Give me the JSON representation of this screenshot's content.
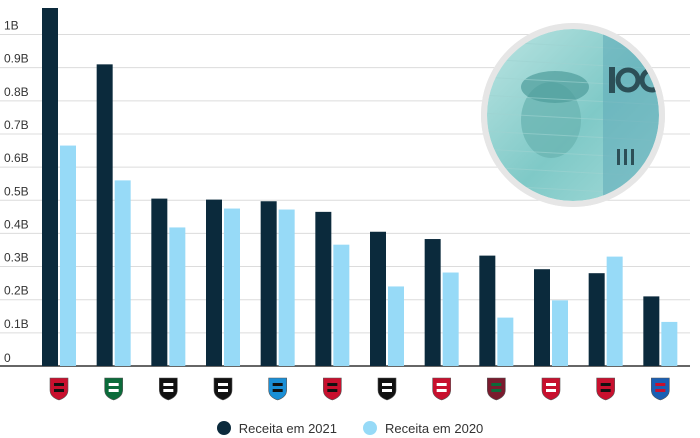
{
  "chart_data": {
    "type": "bar",
    "title": "",
    "xlabel": "",
    "ylabel": "",
    "ylim": [
      0,
      1.08
    ],
    "y_ticks": [
      {
        "value": 0,
        "label": "0"
      },
      {
        "value": 0.1,
        "label": "0.1B"
      },
      {
        "value": 0.2,
        "label": "0.2B"
      },
      {
        "value": 0.3,
        "label": "0.3B"
      },
      {
        "value": 0.4,
        "label": "0.4B"
      },
      {
        "value": 0.5,
        "label": "0.5B"
      },
      {
        "value": 0.6,
        "label": "0.6B"
      },
      {
        "value": 0.7,
        "label": "0.7B"
      },
      {
        "value": 0.8,
        "label": "0.8B"
      },
      {
        "value": 0.9,
        "label": "0.9B"
      },
      {
        "value": 1.0,
        "label": "1B"
      }
    ],
    "grid": true,
    "legend_position": "bottom-center",
    "categories": [
      "Flamengo",
      "Palmeiras",
      "Atlético Mineiro",
      "Corinthians",
      "Grêmio",
      "São Paulo",
      "Santos",
      "Internacional",
      "Fluminense",
      "Red Bull Bragantino",
      "Athletico Paranaense",
      "Bahia"
    ],
    "series": [
      {
        "name": "Receita em 2021",
        "color": "#0b2a3c",
        "values": [
          1.08,
          0.91,
          0.505,
          0.502,
          0.497,
          0.465,
          0.405,
          0.383,
          0.333,
          0.292,
          0.28,
          0.21
        ]
      },
      {
        "name": "Receita em 2020",
        "color": "#97daf7",
        "values": [
          0.665,
          0.56,
          0.418,
          0.475,
          0.472,
          0.366,
          0.24,
          0.282,
          0.146,
          0.198,
          0.33,
          0.133
        ]
      }
    ]
  },
  "decoration": {
    "banknote_icon": "brazil-100-reais-banknote",
    "crest_icons": [
      "flamengo-crest",
      "palmeiras-crest",
      "atletico-mineiro-crest",
      "corinthians-crest",
      "gremio-crest",
      "sao-paulo-crest",
      "santos-crest",
      "internacional-crest",
      "fluminense-crest",
      "bragantino-crest",
      "athletico-crest",
      "bahia-crest"
    ]
  }
}
